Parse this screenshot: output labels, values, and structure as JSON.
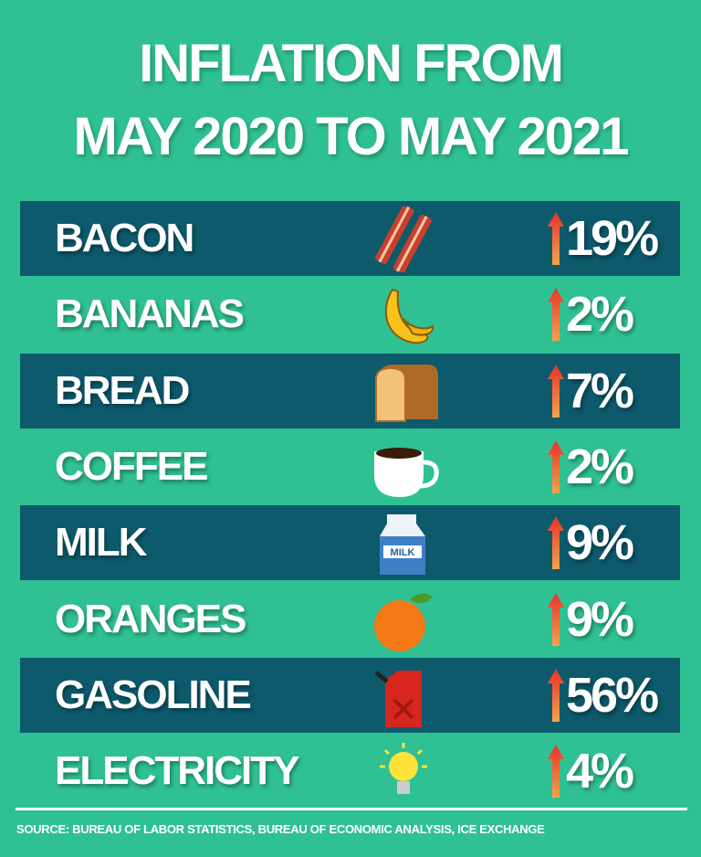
{
  "title": {
    "line1": "INFLATION FROM",
    "line2": "MAY 2020 TO MAY 2021"
  },
  "colors": {
    "background": "#2fc193",
    "dark_row": "#0c5a6c",
    "arrow_top": "#e8332a",
    "arrow_bottom": "#f5a24a"
  },
  "chart_data": {
    "type": "table",
    "title": "INFLATION FROM MAY 2020 TO MAY 2021",
    "rows": [
      {
        "item": "BACON",
        "icon": "bacon-icon",
        "change": "19%",
        "value": 19
      },
      {
        "item": "BANANAS",
        "icon": "banana-icon",
        "change": "2%",
        "value": 2
      },
      {
        "item": "BREAD",
        "icon": "bread-icon",
        "change": "7%",
        "value": 7
      },
      {
        "item": "COFFEE",
        "icon": "coffee-cup-icon",
        "change": "2%",
        "value": 2
      },
      {
        "item": "MILK",
        "icon": "milk-carton-icon",
        "change": "9%",
        "value": 9,
        "icon_text": "MILK"
      },
      {
        "item": "ORANGES",
        "icon": "orange-icon",
        "change": "9%",
        "value": 9
      },
      {
        "item": "GASOLINE",
        "icon": "gas-can-icon",
        "change": "56%",
        "value": 56
      },
      {
        "item": "ELECTRICITY",
        "icon": "light-bulb-icon",
        "change": "4%",
        "value": 4
      }
    ],
    "direction": "up"
  },
  "source": "SOURCE: BUREAU OF LABOR STATISTICS, BUREAU OF ECONOMIC ANALYSIS, ICE EXCHANGE"
}
